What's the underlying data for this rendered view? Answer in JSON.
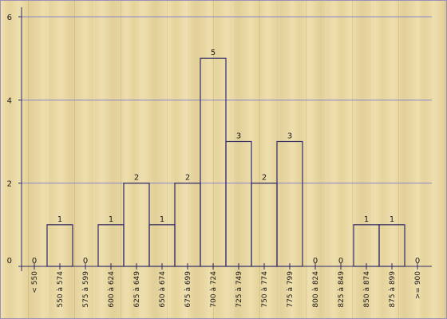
{
  "chart_data": {
    "type": "bar",
    "title": "",
    "xlabel": "",
    "ylabel": "",
    "categories": [
      "< 550",
      "550 à 574",
      "575 à 599",
      "600 à 624",
      "625 à 649",
      "650 à 674",
      "675 à 699",
      "700 à 724",
      "725 à 749",
      "750 à 774",
      "775 à 799",
      "800 à 824",
      "825 à 849",
      "850 à 874",
      "875 à 899",
      ">= 900"
    ],
    "values": [
      0,
      1,
      0,
      1,
      2,
      1,
      2,
      5,
      3,
      2,
      3,
      0,
      0,
      1,
      1,
      0
    ],
    "value_labels": [
      "0",
      "1",
      "0",
      "1",
      "2",
      "1",
      "2",
      "5",
      "3",
      "2",
      "3",
      "0",
      "0",
      "1",
      "1",
      "0"
    ],
    "yticks": [
      0,
      2,
      4,
      6
    ],
    "ytick_labels": [
      "0",
      "2",
      "4",
      "6"
    ],
    "ylim": [
      0,
      6
    ],
    "grid": true,
    "legend": "none",
    "colors": {
      "bar_stroke": "#2e2a66",
      "grid": "#8c87c9",
      "axis": "#2e2a66"
    }
  }
}
